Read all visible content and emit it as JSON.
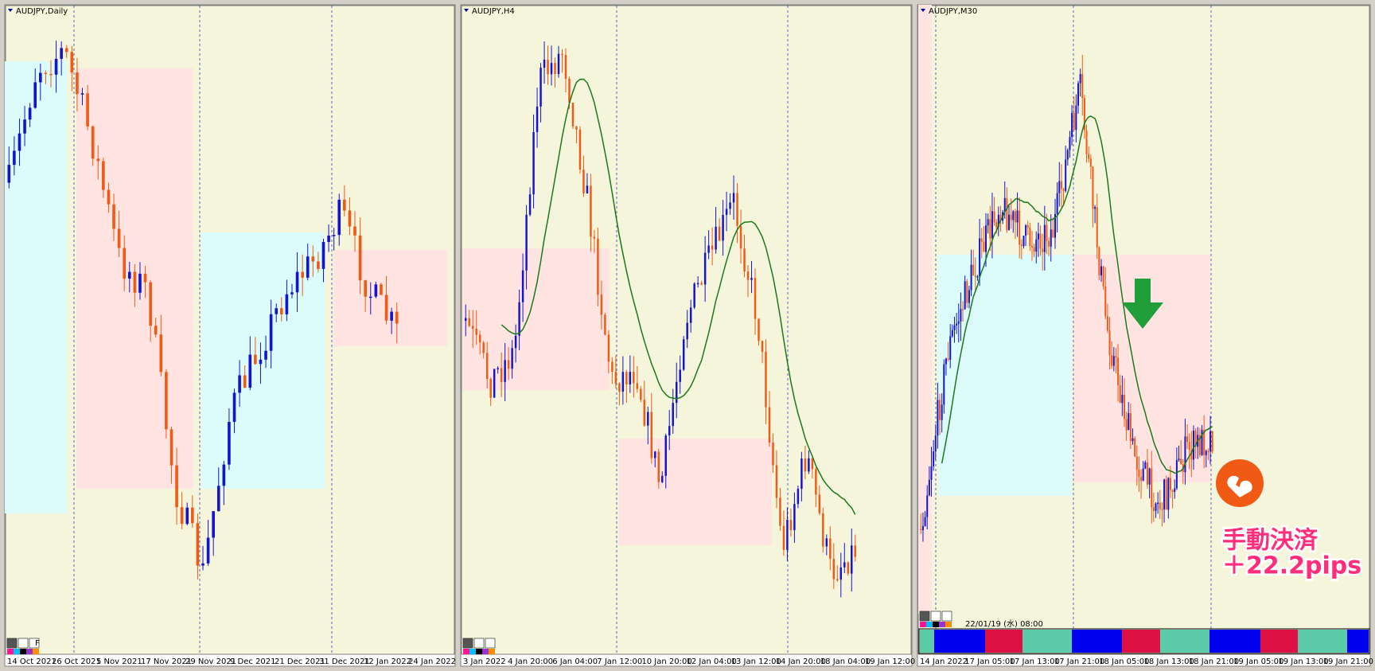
{
  "panels": [
    {
      "title": "AUDJPY,Daily",
      "time_labels": [
        "14 Oct 2021",
        "26 Oct 2021",
        "5 Nov 2021",
        "17 Nov 2021",
        "29 Nov 2021",
        "9 Dec 2021",
        "21 Dec 2021",
        "31 Dec 2021",
        "12 Jan 2022",
        "24 Jan 2022"
      ]
    },
    {
      "title": "AUDJPY,H4",
      "time_labels": [
        "3 Jan 2022",
        "4 Jan 20:00",
        "6 Jan 04:00",
        "7 Jan 12:00",
        "10 Jan 20:00",
        "12 Jan 04:00",
        "13 Jan 12:00",
        "14 Jan 20:00",
        "18 Jan 04:00",
        "19 Jan 12:00"
      ]
    },
    {
      "title": "AUDJPY,M30",
      "time_labels": [
        "14 Jan 2022",
        "17 Jan 05:00",
        "17 Jan 13:00",
        "17 Jan 21:00",
        "18 Jan 05:00",
        "18 Jan 13:00",
        "18 Jan 21:00",
        "19 Jan 05:00",
        "19 Jan 13:00",
        "19 Jan 21:00"
      ]
    }
  ],
  "button": "F",
  "status_time": "22/01/19 (水) 08:00",
  "annotation": {
    "line1": "手動決済",
    "line2": "＋22.2pips"
  }
}
